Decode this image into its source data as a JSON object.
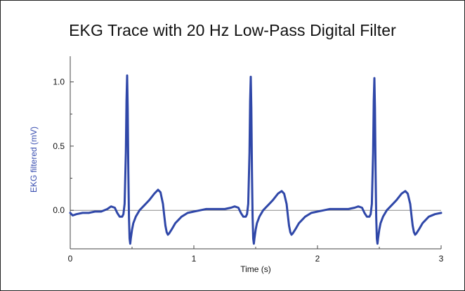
{
  "chart_data": {
    "type": "line",
    "title": "EKG Trace with 20 Hz Low-Pass Digital Filter",
    "xlabel": "Time (s)",
    "ylabel": "EKG filtered  (mV)",
    "xlim": [
      0,
      3
    ],
    "ylim": [
      -0.3,
      1.2
    ],
    "x_ticks": [
      "0",
      "1",
      "2",
      "3"
    ],
    "y_ticks": [
      "0.0",
      "0.5",
      "1.0"
    ],
    "grid": false,
    "baseline_y": 0.0,
    "series": [
      {
        "color": "#2f47a8",
        "x": [
          0.0,
          0.02,
          0.05,
          0.1,
          0.15,
          0.2,
          0.25,
          0.3,
          0.33,
          0.36,
          0.38,
          0.4,
          0.42,
          0.43,
          0.44,
          0.45,
          0.455,
          0.46,
          0.465,
          0.47,
          0.475,
          0.48,
          0.485,
          0.49,
          0.5,
          0.51,
          0.53,
          0.56,
          0.6,
          0.64,
          0.68,
          0.71,
          0.73,
          0.75,
          0.76,
          0.77,
          0.78,
          0.79,
          0.8,
          0.82,
          0.85,
          0.9,
          0.95,
          1.0,
          1.05,
          1.1,
          1.15,
          1.2,
          1.25,
          1.3,
          1.33,
          1.36,
          1.38,
          1.4,
          1.42,
          1.43,
          1.44,
          1.45,
          1.455,
          1.46,
          1.465,
          1.47,
          1.475,
          1.48,
          1.485,
          1.49,
          1.5,
          1.51,
          1.53,
          1.56,
          1.6,
          1.64,
          1.68,
          1.71,
          1.73,
          1.75,
          1.76,
          1.77,
          1.78,
          1.79,
          1.8,
          1.82,
          1.85,
          1.9,
          1.95,
          2.0,
          2.05,
          2.1,
          2.15,
          2.2,
          2.25,
          2.3,
          2.33,
          2.36,
          2.38,
          2.4,
          2.42,
          2.43,
          2.44,
          2.45,
          2.455,
          2.46,
          2.465,
          2.47,
          2.475,
          2.48,
          2.485,
          2.49,
          2.5,
          2.51,
          2.53,
          2.56,
          2.6,
          2.64,
          2.68,
          2.71,
          2.73,
          2.75,
          2.76,
          2.77,
          2.78,
          2.79,
          2.8,
          2.82,
          2.85,
          2.9,
          2.95,
          3.0
        ],
        "y": [
          -0.02,
          -0.04,
          -0.03,
          -0.02,
          -0.02,
          -0.01,
          -0.01,
          0.01,
          0.03,
          0.02,
          -0.02,
          -0.05,
          -0.05,
          -0.03,
          0.05,
          0.45,
          0.85,
          1.05,
          0.8,
          0.3,
          -0.05,
          -0.22,
          -0.26,
          -0.22,
          -0.15,
          -0.1,
          -0.05,
          0.0,
          0.04,
          0.08,
          0.13,
          0.16,
          0.14,
          0.05,
          -0.04,
          -0.12,
          -0.17,
          -0.19,
          -0.18,
          -0.15,
          -0.1,
          -0.05,
          -0.02,
          -0.01,
          0.0,
          0.01,
          0.01,
          0.01,
          0.01,
          0.02,
          0.03,
          0.02,
          -0.02,
          -0.05,
          -0.05,
          -0.03,
          0.05,
          0.45,
          0.85,
          1.04,
          0.8,
          0.3,
          -0.05,
          -0.22,
          -0.26,
          -0.22,
          -0.15,
          -0.1,
          -0.05,
          0.0,
          0.04,
          0.08,
          0.13,
          0.15,
          0.13,
          0.05,
          -0.04,
          -0.12,
          -0.17,
          -0.19,
          -0.18,
          -0.15,
          -0.1,
          -0.05,
          -0.02,
          -0.01,
          0.0,
          0.01,
          0.01,
          0.01,
          0.01,
          0.02,
          0.03,
          0.02,
          -0.02,
          -0.05,
          -0.05,
          -0.03,
          0.05,
          0.45,
          0.85,
          1.03,
          0.8,
          0.3,
          -0.05,
          -0.22,
          -0.26,
          -0.22,
          -0.15,
          -0.1,
          -0.05,
          0.0,
          0.04,
          0.08,
          0.13,
          0.15,
          0.13,
          0.05,
          -0.04,
          -0.12,
          -0.17,
          -0.19,
          -0.18,
          -0.15,
          -0.1,
          -0.05,
          -0.03,
          -0.02
        ]
      }
    ]
  }
}
